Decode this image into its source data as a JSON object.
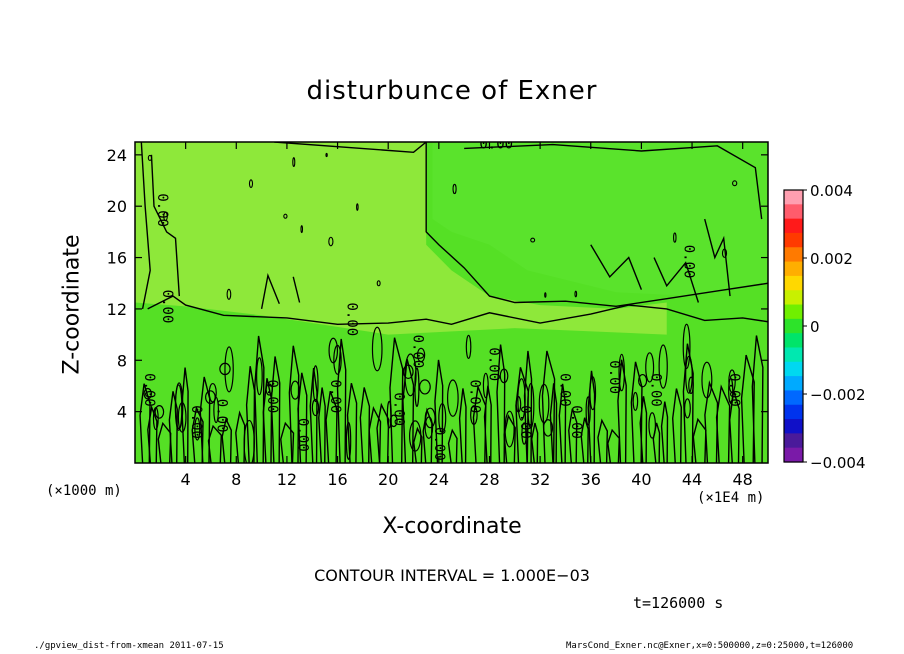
{
  "chart_data": {
    "type": "heatmap",
    "title": "disturbunce of Exner",
    "xlabel": "X-coordinate",
    "ylabel": "Z-coordinate",
    "x_unit_left": "(×1000 m)",
    "x_unit_right": "(×1E4 m)",
    "xlim": [
      0,
      50
    ],
    "ylim": [
      0,
      25
    ],
    "x_ticks": [
      "4",
      "8",
      "12",
      "16",
      "20",
      "24",
      "28",
      "32",
      "36",
      "40",
      "44",
      "48"
    ],
    "y_ticks": [
      "4",
      "8",
      "12",
      "16",
      "20",
      "24"
    ],
    "colorbar": {
      "range": [
        -0.004,
        0.004
      ],
      "tick_labels": [
        "0.004",
        "0.002",
        "0",
        "−0.002",
        "−0.004"
      ],
      "colors": [
        "#ff9fb0",
        "#ff5c6c",
        "#ff1a1a",
        "#ff3a00",
        "#ff7a00",
        "#ffae00",
        "#ffd800",
        "#c8f000",
        "#70ef00",
        "#2de32a",
        "#00e46a",
        "#00e8b0",
        "#00d8f0",
        "#00aaff",
        "#0068ff",
        "#0033ee",
        "#1010c8",
        "#4a1a9a",
        "#7a1aa8"
      ]
    },
    "contour_labels": [
      "0.00",
      "0.00",
      "0.00",
      "0.00",
      "0.00",
      "0.00",
      "0.00",
      "0.00",
      "0.00",
      "0.00",
      "0.00",
      "0.00",
      "0.00",
      "0.00",
      "0.00",
      "0.00",
      "0.00",
      "0.00",
      "0.00",
      "0.00",
      "0.00",
      "0.00"
    ],
    "contour_interval_text": "CONTOUR INTERVAL = 1.000E−03",
    "time_text": "t=126000 s"
  },
  "footer": {
    "left": "./gpview_dist-from-xmean  2011-07-15",
    "right": "MarsCond_Exner.nc@Exner,x=0:500000,z=0:25000,t=126000"
  },
  "colors": {
    "field_upper": "#8ee83a",
    "field_lower": "#55e025",
    "field_right": "#5ae32c",
    "contour": "#000000"
  }
}
